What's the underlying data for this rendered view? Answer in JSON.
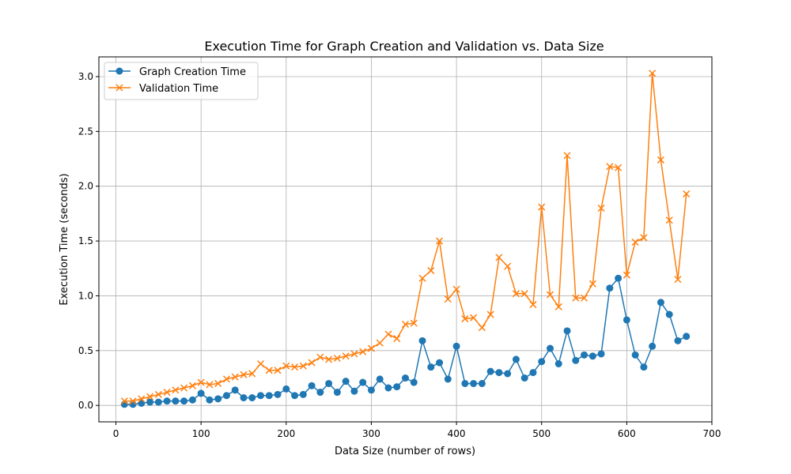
{
  "chart_data": {
    "type": "line",
    "title": "Execution Time for Graph Creation and Validation vs. Data Size",
    "xlabel": "Data Size (number of rows)",
    "ylabel": "Execution Time (seconds)",
    "xlim": [
      -20,
      700
    ],
    "ylim": [
      -0.15,
      3.18
    ],
    "x_ticks": [
      0,
      100,
      200,
      300,
      400,
      500,
      600,
      700
    ],
    "y_ticks": [
      0.0,
      0.5,
      1.0,
      1.5,
      2.0,
      2.5,
      3.0
    ],
    "y_tick_labels": [
      "0.0",
      "0.5",
      "1.0",
      "1.5",
      "2.0",
      "2.5",
      "3.0"
    ],
    "grid": true,
    "legend_position": "top-left",
    "x": [
      10,
      20,
      30,
      40,
      50,
      60,
      70,
      80,
      90,
      100,
      110,
      120,
      130,
      140,
      150,
      160,
      170,
      180,
      190,
      200,
      210,
      220,
      230,
      240,
      250,
      260,
      270,
      280,
      290,
      300,
      310,
      320,
      330,
      340,
      350,
      360,
      370,
      380,
      390,
      400,
      410,
      420,
      430,
      440,
      450,
      460,
      470,
      480,
      490,
      500,
      510,
      520,
      530,
      540,
      550,
      560,
      570,
      580,
      590,
      600,
      610,
      620,
      630,
      640,
      650,
      660,
      670
    ],
    "series": [
      {
        "name": "Graph Creation Time",
        "color": "#1f77b4",
        "marker": "circle",
        "values": [
          0.01,
          0.01,
          0.02,
          0.03,
          0.03,
          0.04,
          0.04,
          0.04,
          0.05,
          0.11,
          0.05,
          0.06,
          0.09,
          0.14,
          0.07,
          0.07,
          0.09,
          0.09,
          0.1,
          0.15,
          0.09,
          0.1,
          0.18,
          0.12,
          0.2,
          0.12,
          0.22,
          0.13,
          0.21,
          0.14,
          0.24,
          0.16,
          0.17,
          0.25,
          0.21,
          0.59,
          0.35,
          0.39,
          0.24,
          0.54,
          0.2,
          0.2,
          0.2,
          0.31,
          0.3,
          0.29,
          0.42,
          0.25,
          0.3,
          0.4,
          0.52,
          0.38,
          0.68,
          0.41,
          0.46,
          0.45,
          0.47,
          1.07,
          1.16,
          0.78,
          0.46,
          0.35,
          0.54,
          0.94,
          0.83,
          0.59,
          0.63
        ]
      },
      {
        "name": "Validation Time",
        "color": "#ff7f0e",
        "marker": "x",
        "values": [
          0.04,
          0.04,
          0.06,
          0.08,
          0.1,
          0.12,
          0.14,
          0.16,
          0.18,
          0.21,
          0.19,
          0.2,
          0.24,
          0.26,
          0.28,
          0.29,
          0.38,
          0.32,
          0.32,
          0.36,
          0.35,
          0.36,
          0.39,
          0.44,
          0.42,
          0.43,
          0.45,
          0.47,
          0.49,
          0.52,
          0.57,
          0.65,
          0.61,
          0.74,
          0.75,
          1.16,
          1.23,
          1.5,
          0.97,
          1.06,
          0.79,
          0.8,
          0.71,
          0.83,
          1.35,
          1.27,
          1.02,
          1.02,
          0.92,
          1.81,
          1.01,
          0.9,
          2.28,
          0.98,
          0.98,
          1.11,
          1.8,
          2.18,
          2.17,
          1.19,
          1.49,
          1.53,
          3.03,
          2.24,
          1.69,
          1.15,
          1.93
        ]
      }
    ]
  }
}
